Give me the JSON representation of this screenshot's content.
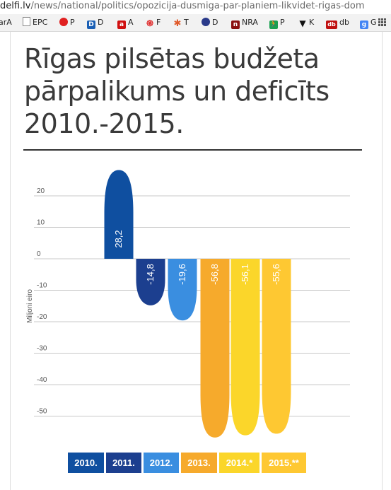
{
  "browser": {
    "url_host": "delfi.lv",
    "url_path": "/news/national/politics/opozicija-dusmiga-par-planiem-likvidet-rigas-dom",
    "bookmarks": [
      {
        "label": "arA",
        "icon": "none"
      },
      {
        "label": "EPC",
        "icon": "page-icon"
      },
      {
        "label": "P",
        "icon": "red-dot-icon",
        "color": "#e02020"
      },
      {
        "label": "D",
        "icon": "d-logo-icon",
        "color": "#1a5fb4"
      },
      {
        "label": "A",
        "icon": "a-logo-icon",
        "color": "#d01010"
      },
      {
        "label": "F",
        "icon": "swirl-icon",
        "color": "#e03030"
      },
      {
        "label": "T",
        "icon": "star-icon",
        "color": "#e05a2a"
      },
      {
        "label": "D",
        "icon": "globe-icon",
        "color": "#2a3a8a"
      },
      {
        "label": "NRA",
        "icon": "n-logo-icon",
        "color": "#8a1010"
      },
      {
        "label": "P",
        "icon": "runner-icon",
        "color": "#1aa050"
      },
      {
        "label": "K",
        "icon": "arrow-icon",
        "color": "#111111"
      },
      {
        "label": "db",
        "icon": "db-logo-icon",
        "color": "#c01010"
      },
      {
        "label": "G",
        "icon": "google-icon",
        "color": "#4285f4"
      }
    ]
  },
  "article": {
    "title": "Rīgas pilsētas budžeta pārpalikums un deficīts 2010.-2015."
  },
  "colors": {
    "2010": "#0f4fa0",
    "2011": "#1c3f8f",
    "2012": "#3a8ee0",
    "2013": "#f6aa2c",
    "2014": "#fbd62a",
    "2015": "#fec832"
  },
  "chart_data": {
    "type": "bar",
    "categories": [
      "2010.",
      "2011.",
      "2012.",
      "2013.",
      "2014.*",
      "2015.**"
    ],
    "values": [
      28.2,
      -14.8,
      -19.6,
      -56.8,
      -56.1,
      -55.6
    ],
    "data_labels": [
      "28,2",
      "-14,8",
      "-19,6",
      "-56,8",
      "-56,1",
      "-55,6"
    ],
    "ylabel": "Miljoni eiro",
    "yticks": [
      20,
      10,
      0,
      -10,
      -20,
      -30,
      -40,
      -50
    ],
    "ytick_labels": [
      "20",
      "10",
      "0",
      "-10",
      "-20",
      "-30",
      "-40",
      "-50"
    ],
    "ylim": [
      -55,
      22
    ],
    "grid": true,
    "legend": "bottom",
    "bar_shape": "rounded-end"
  }
}
